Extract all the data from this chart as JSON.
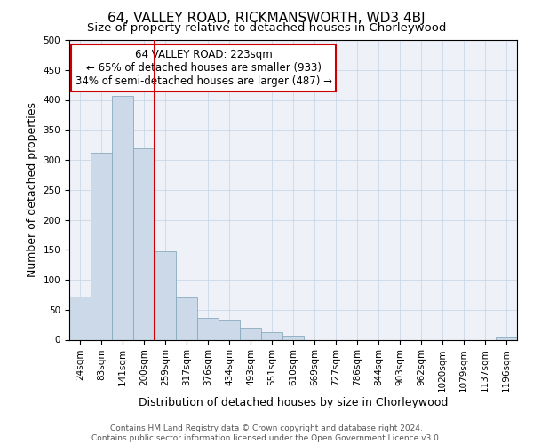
{
  "title": "64, VALLEY ROAD, RICKMANSWORTH, WD3 4BJ",
  "subtitle": "Size of property relative to detached houses in Chorleywood",
  "xlabel": "Distribution of detached houses by size in Chorleywood",
  "ylabel": "Number of detached properties",
  "bar_labels": [
    "24sqm",
    "83sqm",
    "141sqm",
    "200sqm",
    "259sqm",
    "317sqm",
    "376sqm",
    "434sqm",
    "493sqm",
    "551sqm",
    "610sqm",
    "669sqm",
    "727sqm",
    "786sqm",
    "844sqm",
    "903sqm",
    "962sqm",
    "1020sqm",
    "1079sqm",
    "1137sqm",
    "1196sqm"
  ],
  "bar_heights": [
    72,
    312,
    407,
    320,
    147,
    70,
    37,
    34,
    20,
    13,
    6,
    0,
    0,
    0,
    0,
    0,
    0,
    0,
    0,
    0,
    3
  ],
  "bar_color": "#ccd9e8",
  "bar_edge_color": "#8aaabf",
  "vline_x": 3.5,
  "vline_color": "#cc0000",
  "annotation_title": "64 VALLEY ROAD: 223sqm",
  "annotation_line1": "← 65% of detached houses are smaller (933)",
  "annotation_line2": "34% of semi-detached houses are larger (487) →",
  "annotation_box_color": "#ffffff",
  "annotation_box_edge": "#cc0000",
  "ylim": [
    0,
    500
  ],
  "yticks": [
    0,
    50,
    100,
    150,
    200,
    250,
    300,
    350,
    400,
    450,
    500
  ],
  "footer1": "Contains HM Land Registry data © Crown copyright and database right 2024.",
  "footer2": "Contains public sector information licensed under the Open Government Licence v3.0.",
  "title_fontsize": 11,
  "subtitle_fontsize": 9.5,
  "xlabel_fontsize": 9,
  "ylabel_fontsize": 9,
  "tick_fontsize": 7.5,
  "annotation_fontsize": 8.5,
  "footer_fontsize": 6.5
}
